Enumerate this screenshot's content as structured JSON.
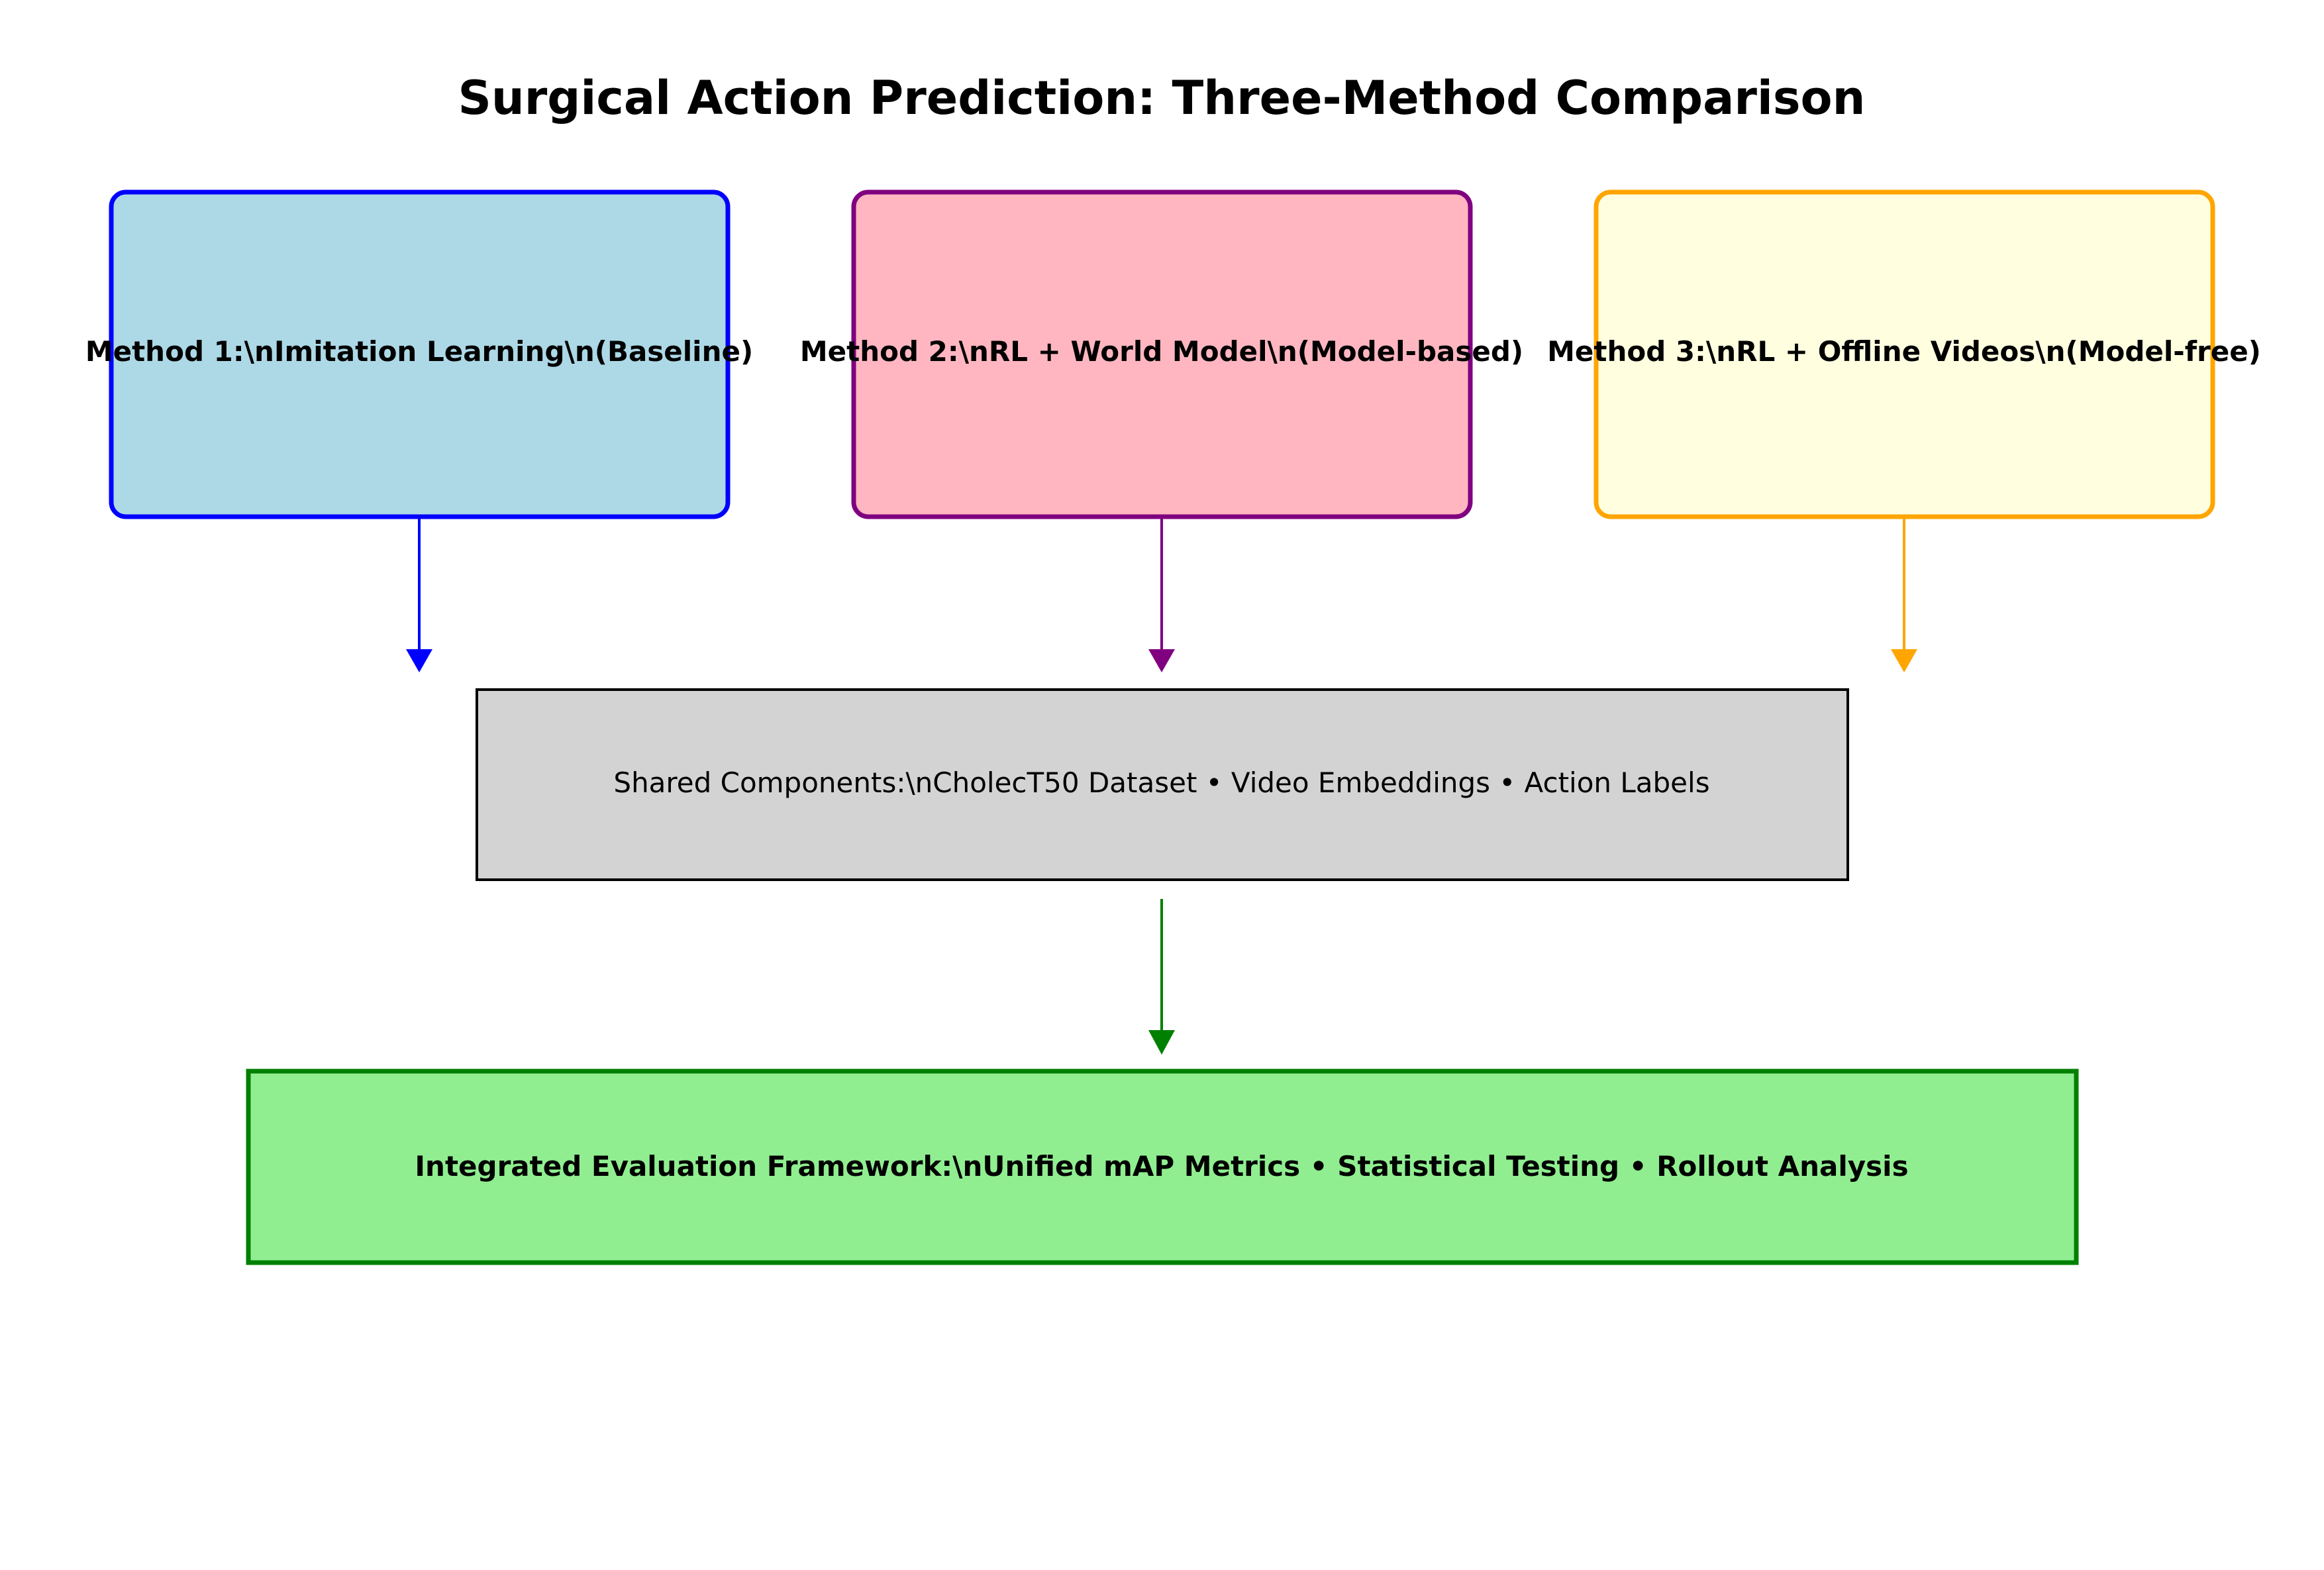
{
  "title": "Surgical Action Prediction: Three-Method Comparison",
  "methods": [
    {
      "label": "Method 1:\\nImitation Learning\\n(Baseline)",
      "fill": "#add8e6",
      "stroke": "#0000ff"
    },
    {
      "label": "Method 2:\\nRL + World Model\\n(Model-based)",
      "fill": "#ffb6c1",
      "stroke": "#800080"
    },
    {
      "label": "Method 3:\\nRL + Offline Videos\\n(Model-free)",
      "fill": "#ffffe0",
      "stroke": "#ffa500"
    }
  ],
  "shared": {
    "label": "Shared Components:\\nCholecT50 Dataset • Video Embeddings • Action Labels",
    "fill": "#d3d3d3",
    "stroke": "#000000"
  },
  "evaluation": {
    "label": "Integrated Evaluation Framework:\\nUnified mAP Metrics • Statistical Testing • Rollout Analysis",
    "fill": "#90ee90",
    "stroke": "#008000"
  },
  "arrows": {
    "shared_to_evaluation_color": "#008000"
  }
}
